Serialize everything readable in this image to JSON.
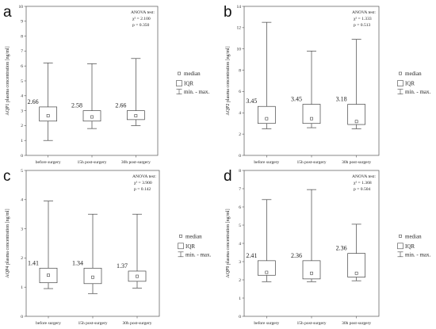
{
  "chart_data": [
    {
      "type": "boxplot",
      "panel": "a",
      "ylabel": "AQP1 plasma concentration [ng/ml]",
      "ylim": [
        0,
        10
      ],
      "yticks": [
        0,
        1,
        2,
        3,
        4,
        5,
        6,
        7,
        8,
        9,
        10
      ],
      "categories": [
        "before surgery",
        "15h post-surgery",
        "30h post-surgery"
      ],
      "boxes": [
        {
          "min": 1.0,
          "q1": 2.3,
          "median": 2.66,
          "q3": 3.25,
          "max": 6.2
        },
        {
          "min": 1.8,
          "q1": 2.3,
          "median": 2.58,
          "q3": 3.0,
          "max": 6.15
        },
        {
          "min": 2.0,
          "q1": 2.4,
          "median": 2.66,
          "q3": 3.0,
          "max": 6.5
        }
      ],
      "median_labels": [
        "2.66",
        "2.58",
        "2.66"
      ],
      "anova": {
        "title": "ANOVA test:",
        "chi2": "χ² = 2.100",
        "p": "p = 0.350"
      },
      "legend": {
        "median": "median",
        "iqr": "IQR",
        "range": "min. - max."
      }
    },
    {
      "type": "boxplot",
      "panel": "b",
      "ylabel": "AQP2 plasma concentration [ng/ml]",
      "ylim": [
        0,
        14
      ],
      "yticks": [
        0,
        2,
        4,
        6,
        8,
        10,
        12,
        14
      ],
      "categories": [
        "before surgery",
        "15h post-surgery",
        "30h post-surgery"
      ],
      "boxes": [
        {
          "min": 2.5,
          "q1": 3.0,
          "median": 3.45,
          "q3": 4.6,
          "max": 12.5
        },
        {
          "min": 2.6,
          "q1": 3.0,
          "median": 3.45,
          "q3": 4.8,
          "max": 9.8
        },
        {
          "min": 2.5,
          "q1": 2.9,
          "median": 3.18,
          "q3": 4.8,
          "max": 10.9
        }
      ],
      "median_labels": [
        "3.45",
        "3.45",
        "3.18"
      ],
      "anova": {
        "title": "ANOVA test:",
        "chi2": "χ² = 1.333",
        "p": "p = 0.513"
      },
      "legend": {
        "median": "median",
        "iqr": "IQR",
        "range": "min. - max."
      }
    },
    {
      "type": "boxplot",
      "panel": "c",
      "ylabel": "AQP4 plasma concentration [ng/ml]",
      "ylim": [
        0,
        5
      ],
      "yticks": [
        0,
        1,
        2,
        3,
        4,
        5
      ],
      "categories": [
        "before surgery",
        "15h post-surgery",
        "30h post-surgery"
      ],
      "boxes": [
        {
          "min": 0.95,
          "q1": 1.15,
          "median": 1.41,
          "q3": 1.65,
          "max": 3.95
        },
        {
          "min": 0.78,
          "q1": 1.12,
          "median": 1.34,
          "q3": 1.65,
          "max": 3.5
        },
        {
          "min": 0.97,
          "q1": 1.2,
          "median": 1.37,
          "q3": 1.55,
          "max": 3.5
        }
      ],
      "median_labels": [
        "1.41",
        "1.34",
        "1.37"
      ],
      "anova": {
        "title": "ANOVA test:",
        "chi2": "χ² = 3.900",
        "p": "p = 0.142"
      },
      "legend": {
        "median": "median",
        "iqr": "IQR",
        "range": "min. - max."
      }
    },
    {
      "type": "boxplot",
      "panel": "d",
      "ylabel": "AQP9 plasma concentration [ng/ml]",
      "ylim": [
        0,
        8
      ],
      "yticks": [
        0,
        1,
        2,
        3,
        4,
        5,
        6,
        7,
        8
      ],
      "categories": [
        "before surgery",
        "15h post-surgery",
        "30h post-surgery"
      ],
      "boxes": [
        {
          "min": 1.9,
          "q1": 2.25,
          "median": 2.41,
          "q3": 3.05,
          "max": 6.4
        },
        {
          "min": 1.9,
          "q1": 2.05,
          "median": 2.36,
          "q3": 3.05,
          "max": 6.95
        },
        {
          "min": 1.95,
          "q1": 2.15,
          "median": 2.36,
          "q3": 3.45,
          "max": 5.05
        }
      ],
      "median_labels": [
        "2.41",
        "2.36",
        "2.36"
      ],
      "anova": {
        "title": "ANOVA test:",
        "chi2": "χ² = 1.368",
        "p": "p = 0.504"
      },
      "legend": {
        "median": "median",
        "iqr": "IQR",
        "range": "min. - max."
      }
    }
  ]
}
